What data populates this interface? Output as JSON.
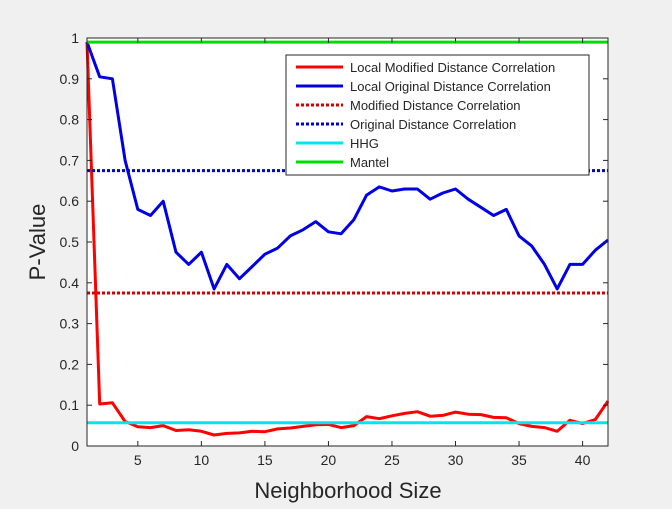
{
  "chart_data": {
    "type": "line",
    "xlabel": "Neighborhood Size",
    "ylabel": "P-Value",
    "xlim": [
      1,
      42
    ],
    "ylim": [
      0,
      1
    ],
    "xticks": [
      5,
      10,
      15,
      20,
      25,
      30,
      35,
      40
    ],
    "yticks": [
      0,
      0.1,
      0.2,
      0.3,
      0.4,
      0.5,
      0.6,
      0.7,
      0.8,
      0.9,
      1
    ],
    "ytick_labels": [
      "0",
      "0.1",
      "0.2",
      "0.3",
      "0.4",
      "0.5",
      "0.6",
      "0.7",
      "0.8",
      "0.9",
      "1"
    ],
    "grid": false,
    "legend_position": "top-right",
    "series": [
      {
        "name": "Local Modified Distance Correlation",
        "color": "#ff0000",
        "style": "solid",
        "x": [
          1,
          2,
          3,
          4,
          5,
          6,
          7,
          8,
          9,
          10,
          11,
          12,
          13,
          14,
          15,
          16,
          17,
          18,
          19,
          20,
          21,
          22,
          23,
          24,
          25,
          26,
          27,
          28,
          29,
          30,
          31,
          32,
          33,
          34,
          35,
          36,
          37,
          38,
          39,
          40,
          41,
          42
        ],
        "y": [
          0.99,
          0.103,
          0.106,
          0.06,
          0.047,
          0.045,
          0.05,
          0.038,
          0.04,
          0.036,
          0.027,
          0.031,
          0.032,
          0.036,
          0.035,
          0.042,
          0.044,
          0.048,
          0.052,
          0.053,
          0.045,
          0.05,
          0.072,
          0.067,
          0.074,
          0.08,
          0.084,
          0.073,
          0.075,
          0.083,
          0.078,
          0.077,
          0.07,
          0.069,
          0.055,
          0.048,
          0.045,
          0.036,
          0.063,
          0.055,
          0.065,
          0.11
        ]
      },
      {
        "name": "Local Original Distance Correlation",
        "color": "#0000e6",
        "style": "solid",
        "x": [
          1,
          2,
          3,
          4,
          5,
          6,
          7,
          8,
          9,
          10,
          11,
          12,
          13,
          14,
          15,
          16,
          17,
          18,
          19,
          20,
          21,
          22,
          23,
          24,
          25,
          26,
          27,
          28,
          29,
          30,
          31,
          32,
          33,
          34,
          35,
          36,
          37,
          38,
          39,
          40,
          41,
          42
        ],
        "y": [
          0.99,
          0.905,
          0.9,
          0.7,
          0.58,
          0.565,
          0.6,
          0.475,
          0.445,
          0.475,
          0.385,
          0.445,
          0.41,
          0.44,
          0.47,
          0.485,
          0.515,
          0.53,
          0.55,
          0.525,
          0.52,
          0.555,
          0.615,
          0.635,
          0.625,
          0.63,
          0.63,
          0.605,
          0.62,
          0.63,
          0.605,
          0.585,
          0.565,
          0.58,
          0.515,
          0.49,
          0.445,
          0.385,
          0.445,
          0.445,
          0.48,
          0.505
        ]
      },
      {
        "name": "Modified Distance Correlation",
        "color": "#d40000",
        "style": "dotted",
        "x": [
          1,
          42
        ],
        "y": [
          0.375,
          0.375
        ]
      },
      {
        "name": "Original Distance Correlation",
        "color": "#0000d4",
        "style": "dotted",
        "x": [
          1,
          42
        ],
        "y": [
          0.675,
          0.675
        ]
      },
      {
        "name": "HHG",
        "color": "#00e5ee",
        "style": "solid",
        "x": [
          1,
          42
        ],
        "y": [
          0.057,
          0.057
        ]
      },
      {
        "name": "Mantel",
        "color": "#00dd00",
        "style": "solid",
        "x": [
          1,
          42
        ],
        "y": [
          0.99,
          0.99
        ]
      }
    ]
  }
}
